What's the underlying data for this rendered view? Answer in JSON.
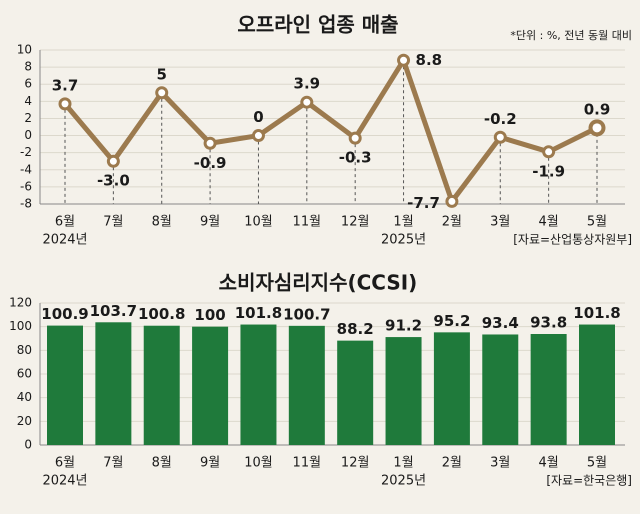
{
  "chart_data": [
    {
      "type": "line",
      "title": "오프라인 업종 매출",
      "note": "*단위 : %, 전년 동월 대비",
      "categories": [
        "6월",
        "7월",
        "8월",
        "9월",
        "10월",
        "11월",
        "12월",
        "1월",
        "2월",
        "3월",
        "4월",
        "5월"
      ],
      "x_year_labels": [
        "2024년",
        null,
        null,
        null,
        null,
        null,
        null,
        "2025년",
        null,
        null,
        null,
        null
      ],
      "values": [
        3.7,
        -3.0,
        5,
        -0.9,
        0,
        3.9,
        -0.3,
        8.8,
        -7.7,
        -0.2,
        -1.9,
        0.9
      ],
      "value_labels": [
        "3.7",
        "-3.0",
        "5",
        "-0.9",
        "0",
        "3.9",
        "-0.3",
        "8.8",
        "-7.7",
        "-0.2",
        "-1.9",
        "0.9"
      ],
      "color": "#9c7a4e",
      "ylim": [
        -8,
        10
      ],
      "yticks": [
        -8,
        -6,
        -4,
        -2,
        0,
        2,
        4,
        6,
        8,
        10
      ],
      "grid": true,
      "source": "[자료=산업통상자원부]"
    },
    {
      "type": "bar",
      "title": "소비자심리지수(CCSI)",
      "categories": [
        "6월",
        "7월",
        "8월",
        "9월",
        "10월",
        "11월",
        "12월",
        "1월",
        "2월",
        "3월",
        "4월",
        "5월"
      ],
      "x_year_labels": [
        "2024년",
        null,
        null,
        null,
        null,
        null,
        null,
        "2025년",
        null,
        null,
        null,
        null
      ],
      "values": [
        100.9,
        103.7,
        100.8,
        100,
        101.8,
        100.7,
        88.2,
        91.2,
        95.2,
        93.4,
        93.8,
        101.8
      ],
      "color": "#1f7a3b",
      "ylim": [
        0,
        120
      ],
      "yticks": [
        0,
        20,
        40,
        60,
        80,
        100,
        120
      ],
      "grid": true,
      "source": "[자료=한국은행]"
    }
  ]
}
